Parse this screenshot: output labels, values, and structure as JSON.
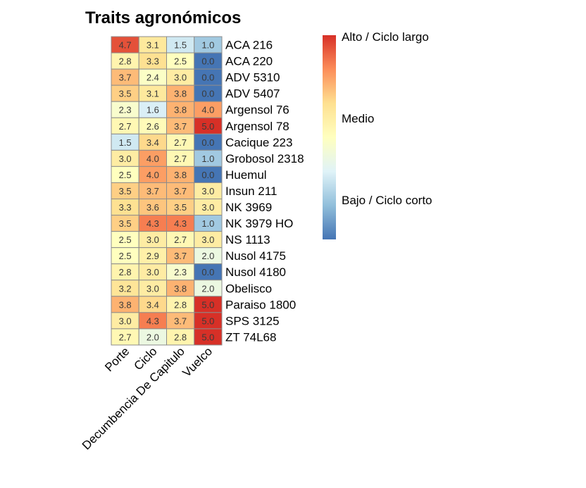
{
  "chart_data": {
    "type": "heatmap",
    "title": "Traits agronómicos",
    "columns": [
      "Porte",
      "Ciclo",
      "Decumbencia De Capitulo",
      "Vuelco"
    ],
    "rows": [
      "ACA 216",
      "ACA 220",
      "ADV 5310",
      "ADV 5407",
      "Argensol 76",
      "Argensol 78",
      "Cacique 223",
      "Grobosol 2318",
      "Huemul",
      "Insun 211",
      "NK 3969",
      "NK 3979 HO",
      "NS 1113",
      "Nusol 4175",
      "Nusol 4180",
      "Obelisco",
      "Paraiso 1800",
      "SPS 3125",
      "ZT 74L68"
    ],
    "values": [
      [
        4.7,
        3.1,
        1.5,
        1.0
      ],
      [
        2.8,
        3.3,
        2.5,
        0.0
      ],
      [
        3.7,
        2.4,
        3.0,
        0.0
      ],
      [
        3.5,
        3.1,
        3.8,
        0.0
      ],
      [
        2.3,
        1.6,
        3.8,
        4.0
      ],
      [
        2.7,
        2.6,
        3.7,
        5.0
      ],
      [
        1.5,
        3.4,
        2.7,
        0.0
      ],
      [
        3.0,
        4.0,
        2.7,
        1.0
      ],
      [
        2.5,
        4.0,
        3.8,
        0.0
      ],
      [
        3.5,
        3.7,
        3.7,
        3.0
      ],
      [
        3.3,
        3.6,
        3.5,
        3.0
      ],
      [
        3.5,
        4.3,
        4.3,
        1.0
      ],
      [
        2.5,
        3.0,
        2.7,
        3.0
      ],
      [
        2.5,
        2.9,
        3.7,
        2.0
      ],
      [
        2.8,
        3.0,
        2.3,
        0.0
      ],
      [
        3.2,
        3.0,
        3.8,
        2.0
      ],
      [
        3.8,
        3.4,
        2.8,
        5.0
      ],
      [
        3.0,
        4.3,
        3.7,
        5.0
      ],
      [
        2.7,
        2.0,
        2.8,
        5.0
      ]
    ],
    "color_scale": [
      "#4575b4",
      "#91bfdb",
      "#e0f3f8",
      "#ffffbf",
      "#fee090",
      "#fc8d59",
      "#d73027"
    ],
    "legend": {
      "position": "right",
      "labels": [
        "Alto / Ciclo largo",
        "Medio",
        "Bajo / Ciclo corto"
      ]
    }
  }
}
